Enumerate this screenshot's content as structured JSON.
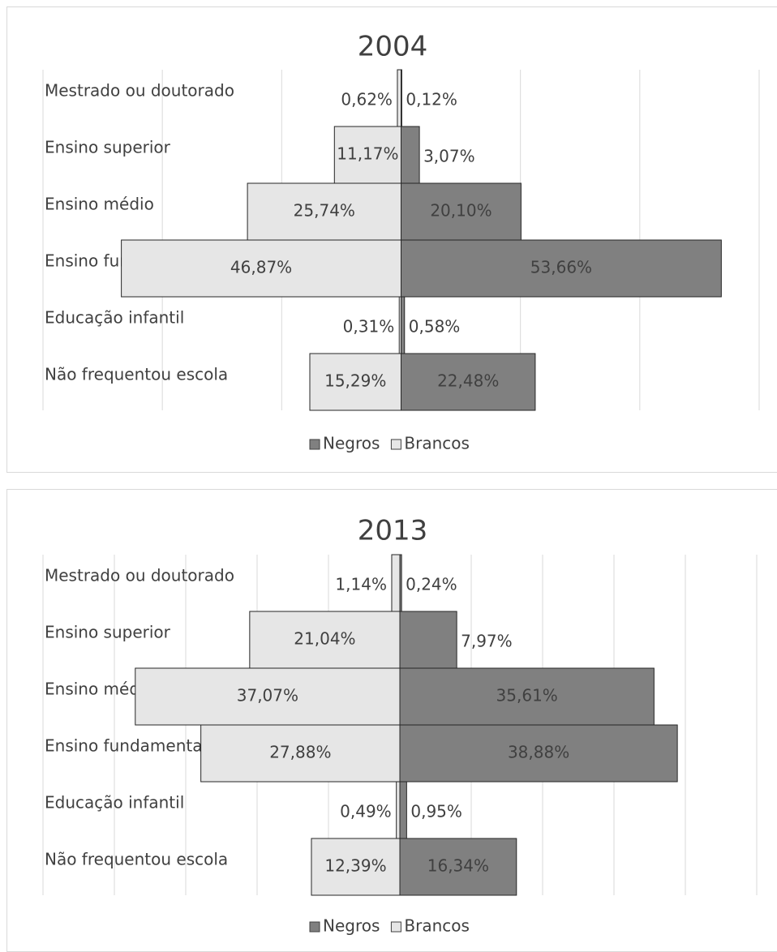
{
  "chart_data": [
    {
      "type": "bar",
      "orientation": "horizontal",
      "title": "2004",
      "categories": [
        "Mestrado ou doutorado",
        "Ensino superior",
        "Ensino médio",
        "Ensino fundamental",
        "Educação infantil",
        "Não frequentou escola"
      ],
      "series": [
        {
          "name": "Negros",
          "color": "#808080",
          "side": "right",
          "values": [
            0.12,
            3.07,
            20.1,
            53.66,
            0.58,
            22.48
          ],
          "value_labels": [
            "0,12%",
            "3,07%",
            "20,10%",
            "53,66%",
            "0,58%",
            "22,48%"
          ]
        },
        {
          "name": "Brancos",
          "color": "#e6e6e6",
          "side": "left",
          "values": [
            0.62,
            11.17,
            25.74,
            46.87,
            0.31,
            15.29
          ],
          "value_labels": [
            "0,62%",
            "11,17%",
            "25,74%",
            "46,87%",
            "0,31%",
            "15,29%"
          ]
        }
      ],
      "xlim": [
        -60,
        60
      ],
      "xticks": [
        -60,
        -40,
        -20,
        0,
        20,
        40,
        60
      ],
      "grid": true,
      "legend": "bottom"
    },
    {
      "type": "bar",
      "orientation": "horizontal",
      "title": "2013",
      "categories": [
        "Mestrado ou doutorado",
        "Ensino superior",
        "Ensino médio",
        "Ensino fundamental",
        "Educação infantil",
        "Não frequentou escola"
      ],
      "series": [
        {
          "name": "Negros",
          "color": "#808080",
          "side": "right",
          "values": [
            0.24,
            7.97,
            35.61,
            38.88,
            0.95,
            16.34
          ],
          "value_labels": [
            "0,24%",
            "7,97%",
            "35,61%",
            "38,88%",
            "0,95%",
            "16,34%"
          ]
        },
        {
          "name": "Brancos",
          "color": "#e6e6e6",
          "side": "left",
          "values": [
            1.14,
            21.04,
            37.07,
            27.88,
            0.49,
            12.39
          ],
          "value_labels": [
            "1,14%",
            "21,04%",
            "37,07%",
            "27,88%",
            "0,49%",
            "12,39%"
          ]
        }
      ],
      "xlim": [
        -50,
        50
      ],
      "xticks": [
        -50,
        -40,
        -30,
        -20,
        -10,
        0,
        10,
        20,
        30,
        40,
        50
      ],
      "grid": true,
      "legend": "bottom"
    }
  ]
}
